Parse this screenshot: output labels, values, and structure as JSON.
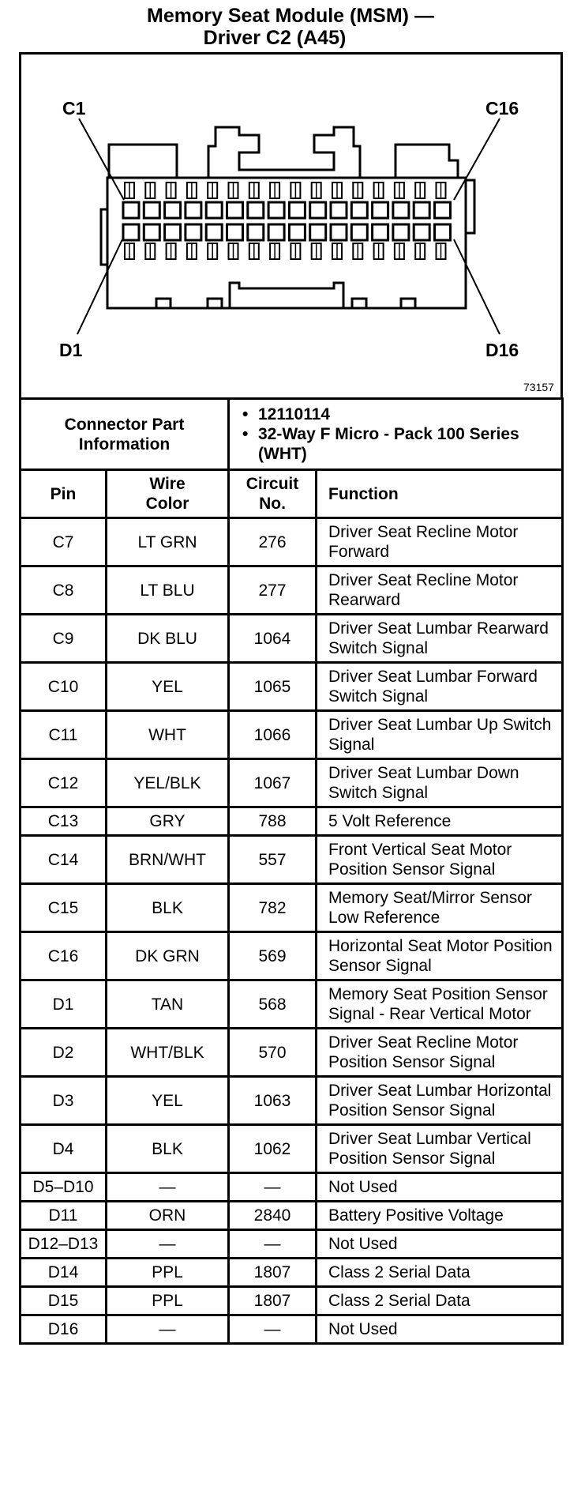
{
  "title": {
    "line1": "Memory Seat Module (MSM) —",
    "line2": "Driver C2 (A45)"
  },
  "diagram": {
    "labels": {
      "c1": "C1",
      "c16": "C16",
      "d1": "D1",
      "d16": "D16"
    },
    "figure_number": "73157"
  },
  "connector_info": {
    "label": "Connector Part Information",
    "items": [
      "12110114",
      "32-Way F Micro - Pack 100 Series (WHT)"
    ]
  },
  "headers": {
    "pin": "Pin",
    "wire_color": "Wire Color",
    "circuit": "Circuit No.",
    "function": "Function"
  },
  "rows": [
    {
      "pin": "C7",
      "color": "LT GRN",
      "circuit": "276",
      "function": "Driver Seat Recline Motor Forward"
    },
    {
      "pin": "C8",
      "color": "LT BLU",
      "circuit": "277",
      "function": "Driver Seat Recline Motor Rearward"
    },
    {
      "pin": "C9",
      "color": "DK BLU",
      "circuit": "1064",
      "function": "Driver Seat Lumbar Rearward Switch Signal"
    },
    {
      "pin": "C10",
      "color": "YEL",
      "circuit": "1065",
      "function": "Driver Seat Lumbar Forward Switch Signal"
    },
    {
      "pin": "C11",
      "color": "WHT",
      "circuit": "1066",
      "function": "Driver Seat Lumbar Up Switch Signal"
    },
    {
      "pin": "C12",
      "color": "YEL/BLK",
      "circuit": "1067",
      "function": "Driver Seat Lumbar Down Switch Signal"
    },
    {
      "pin": "C13",
      "color": "GRY",
      "circuit": "788",
      "function": "5 Volt Reference"
    },
    {
      "pin": "C14",
      "color": "BRN/WHT",
      "circuit": "557",
      "function": "Front Vertical Seat Motor Position Sensor Signal"
    },
    {
      "pin": "C15",
      "color": "BLK",
      "circuit": "782",
      "function": "Memory Seat/Mirror Sensor Low Reference"
    },
    {
      "pin": "C16",
      "color": "DK GRN",
      "circuit": "569",
      "function": "Horizontal Seat Motor Position Sensor Signal"
    },
    {
      "pin": "D1",
      "color": "TAN",
      "circuit": "568",
      "function": "Memory Seat Position Sensor Signal - Rear Vertical Motor"
    },
    {
      "pin": "D2",
      "color": "WHT/BLK",
      "circuit": "570",
      "function": "Driver Seat Recline Motor Position Sensor Signal"
    },
    {
      "pin": "D3",
      "color": "YEL",
      "circuit": "1063",
      "function": "Driver Seat Lumbar Horizontal Position Sensor Signal"
    },
    {
      "pin": "D4",
      "color": "BLK",
      "circuit": "1062",
      "function": "Driver Seat Lumbar Vertical Position Sensor Signal"
    },
    {
      "pin": "D5–D10",
      "color": "—",
      "circuit": "—",
      "function": "Not Used"
    },
    {
      "pin": "D11",
      "color": "ORN",
      "circuit": "2840",
      "function": "Battery Positive Voltage"
    },
    {
      "pin": "D12–D13",
      "color": "—",
      "circuit": "—",
      "function": "Not Used"
    },
    {
      "pin": "D14",
      "color": "PPL",
      "circuit": "1807",
      "function": "Class 2 Serial Data"
    },
    {
      "pin": "D15",
      "color": "PPL",
      "circuit": "1807",
      "function": "Class 2 Serial Data"
    },
    {
      "pin": "D16",
      "color": "—",
      "circuit": "—",
      "function": "Not Used"
    }
  ]
}
